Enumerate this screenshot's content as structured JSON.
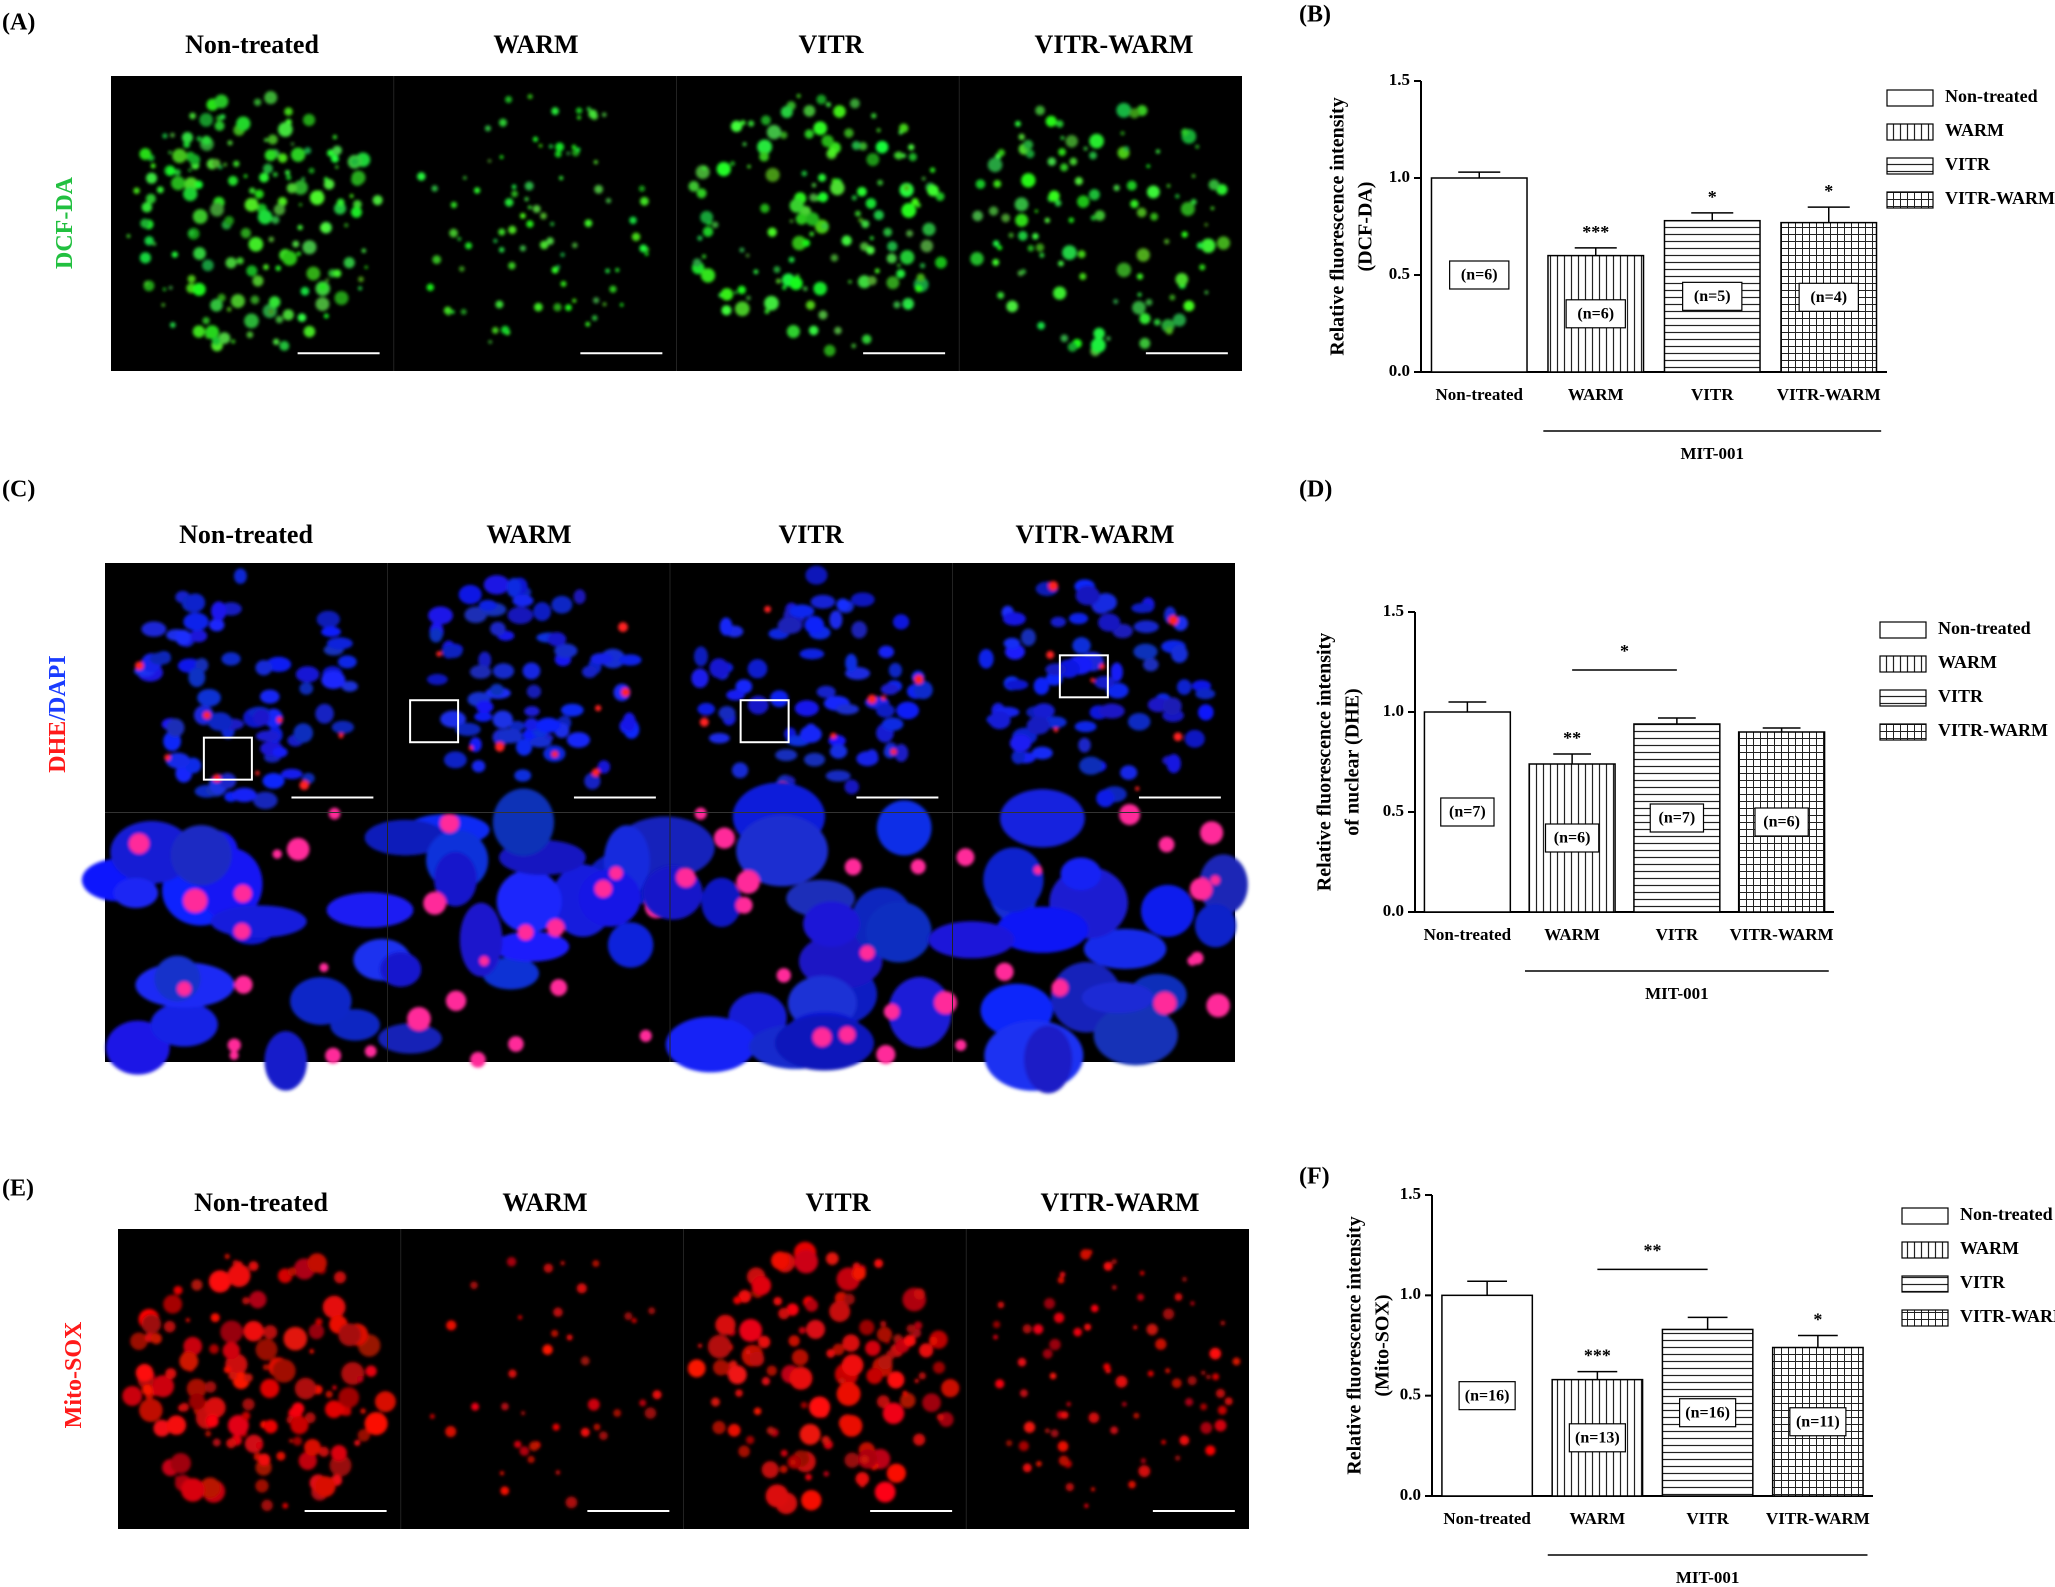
{
  "panel_labels": [
    "(A)",
    "(B)",
    "(C)",
    "(D)",
    "(E)",
    "(F)"
  ],
  "image_panels": [
    {
      "columns": [
        "Non-treated",
        "WARM",
        "VITR",
        "VITR-WARM"
      ],
      "stain": [
        {
          "text": "DCF-DA",
          "color": "#22c040"
        }
      ],
      "rows": 1,
      "channel": "green"
    },
    {
      "columns": [
        "Non-treated",
        "WARM",
        "VITR",
        "VITR-WARM"
      ],
      "stain": [
        {
          "text": "DHE",
          "color": "#ff1a1a"
        },
        {
          "text": "/DAPI",
          "color": "#1a3cff"
        }
      ],
      "rows": 2,
      "channel": "blue-red"
    },
    {
      "columns": [
        "Non-treated",
        "WARM",
        "VITR",
        "VITR-WARM"
      ],
      "stain": [
        {
          "text": "Mito-SOX",
          "color": "#ff1a1a"
        }
      ],
      "rows": 1,
      "channel": "red"
    }
  ],
  "chart_data": [
    {
      "type": "bar",
      "ylabel": [
        "Relative fluorescence intensity",
        "(DCF-DA)"
      ],
      "categories": [
        "Non-treated",
        "WARM",
        "VITR",
        "VITR-WARM"
      ],
      "values": [
        1.0,
        0.6,
        0.78,
        0.77
      ],
      "errors": [
        0.03,
        0.04,
        0.04,
        0.08
      ],
      "n_labels": [
        "(n=6)",
        "(n=6)",
        "(n=5)",
        "(n=4)"
      ],
      "significance": [
        null,
        "***",
        "*",
        "*"
      ],
      "group": {
        "label": "MIT-001",
        "categories": [
          "WARM",
          "VITR",
          "VITR-WARM"
        ]
      },
      "patterns": [
        "none",
        "vertical",
        "horizontal",
        "grid"
      ],
      "ylim": [
        0,
        1.5
      ],
      "yticks": [
        {
          "value": 0,
          "label": "0.0"
        },
        {
          "value": 0.5,
          "label": "0.5"
        },
        {
          "value": 1,
          "label": "1.0"
        },
        {
          "value": 1.5,
          "label": "1.5"
        }
      ],
      "legend": "right"
    },
    {
      "type": "bar",
      "ylabel": [
        "Relative fluorescence intensity",
        "of nuclear (DHE)"
      ],
      "categories": [
        "Non-treated",
        "WARM",
        "VITR",
        "VITR-WARM"
      ],
      "values": [
        1.0,
        0.74,
        0.94,
        0.9
      ],
      "errors": [
        0.05,
        0.05,
        0.03,
        0.02
      ],
      "n_labels": [
        "(n=7)",
        "(n=6)",
        "(n=7)",
        "(n=6)"
      ],
      "significance": [
        null,
        "**",
        null,
        null
      ],
      "comparison": {
        "categories": [
          "WARM",
          "VITR"
        ],
        "label": "*"
      },
      "group": {
        "label": "MIT-001",
        "categories": [
          "WARM",
          "VITR",
          "VITR-WARM"
        ]
      },
      "patterns": [
        "none",
        "vertical",
        "horizontal",
        "grid"
      ],
      "ylim": [
        0,
        1.5
      ],
      "yticks": [
        {
          "value": 0,
          "label": "0.0"
        },
        {
          "value": 0.5,
          "label": "0.5"
        },
        {
          "value": 1,
          "label": "1.0"
        },
        {
          "value": 1.5,
          "label": "1.5"
        }
      ],
      "legend": "right"
    },
    {
      "type": "bar",
      "ylabel": [
        "Relative fluorescence intensity",
        "(Mito-SOX)"
      ],
      "categories": [
        "Non-treated",
        "WARM",
        "VITR",
        "VITR-WARM"
      ],
      "values": [
        1.0,
        0.58,
        0.83,
        0.74
      ],
      "errors": [
        0.07,
        0.04,
        0.06,
        0.06
      ],
      "n_labels": [
        "(n=16)",
        "(n=13)",
        "(n=16)",
        "(n=11)"
      ],
      "significance": [
        null,
        "***",
        null,
        "*"
      ],
      "comparison": {
        "categories": [
          "WARM",
          "VITR"
        ],
        "label": "**"
      },
      "group": {
        "label": "MIT-001",
        "categories": [
          "WARM",
          "VITR",
          "VITR-WARM"
        ]
      },
      "patterns": [
        "none",
        "vertical",
        "horizontal",
        "grid"
      ],
      "ylim": [
        0,
        1.5
      ],
      "yticks": [
        {
          "value": 0,
          "label": "0.0"
        },
        {
          "value": 0.5,
          "label": "0.5"
        },
        {
          "value": 1,
          "label": "1.0"
        },
        {
          "value": 1.5,
          "label": "1.5"
        }
      ],
      "legend": "right"
    }
  ]
}
